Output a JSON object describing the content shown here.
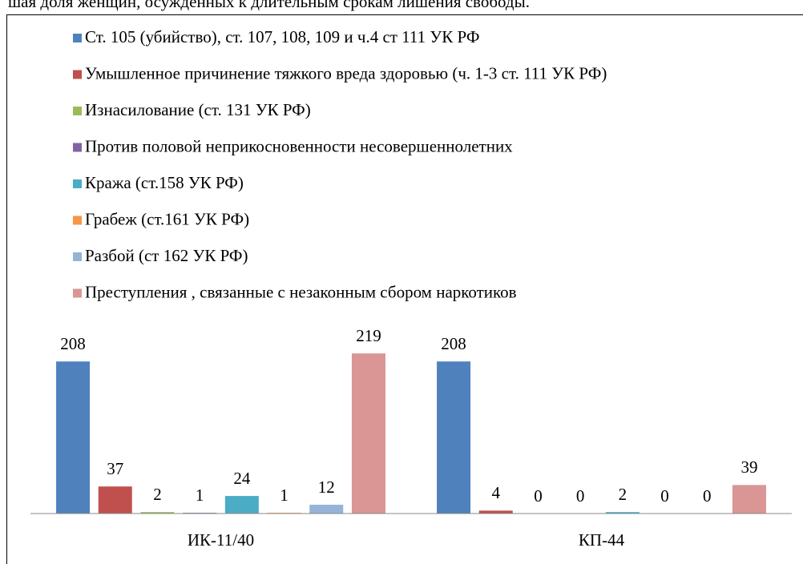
{
  "header_text": "шая доля женщин, осужденных к длительным срокам лишения свободы.",
  "chart_data": {
    "type": "bar",
    "categories": [
      "ИК-11/40",
      "КП-44"
    ],
    "series": [
      {
        "name": "Ст. 105 (убийство), ст. 107, 108, 109 и ч.4 ст 111 УК РФ",
        "color": "#4F81BD",
        "values": [
          208,
          208
        ]
      },
      {
        "name": "Умышленное причинение тяжкого вреда здоровью (ч. 1-3 ст. 111 УК РФ)",
        "color": "#C0504D",
        "values": [
          37,
          4
        ]
      },
      {
        "name": "Изнасилование (ст. 131 УК РФ)",
        "color": "#9BBB59",
        "values": [
          2,
          0
        ]
      },
      {
        "name": "Против половой неприкосновенности несовершеннолетних",
        "color": "#8064A2",
        "values": [
          1,
          0
        ]
      },
      {
        "name": "Кража (ст.158 УК РФ)",
        "color": "#4BACC6",
        "values": [
          24,
          2
        ]
      },
      {
        "name": "Грабеж (ст.161 УК РФ)",
        "color": "#F79646",
        "values": [
          1,
          0
        ]
      },
      {
        "name": "Разбой (ст 162 УК РФ)",
        "color": "#95B3D7",
        "values": [
          12,
          0
        ]
      },
      {
        "name": "Преступления , связанные с незаконным сбором наркотиков",
        "color": "#D99694",
        "values": [
          219,
          39
        ]
      }
    ],
    "ylim": [
      0,
      240
    ],
    "legend": "top"
  }
}
